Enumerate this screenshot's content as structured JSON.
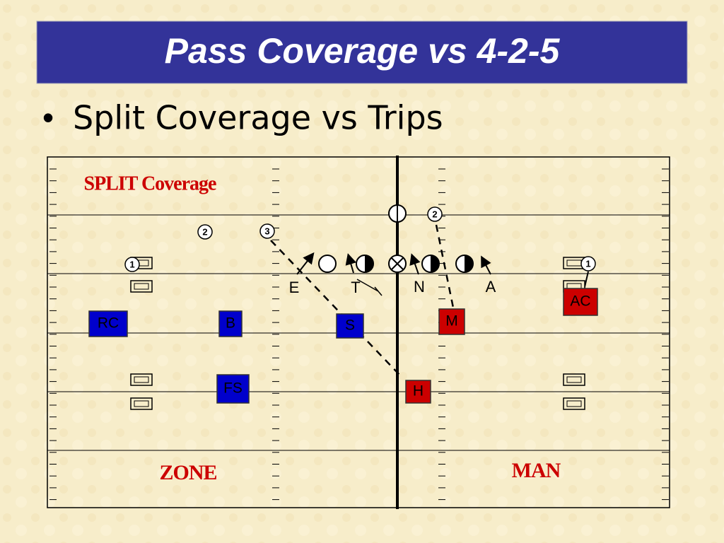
{
  "header": {
    "title": "Pass Coverage vs 4-2-5"
  },
  "bullet": "Split Coverage vs Trips",
  "diagram": {
    "caption": "SPLIT Coverage",
    "routes": [
      "1",
      "2",
      "3",
      "2",
      "1"
    ],
    "line_labels": [
      "E",
      "T",
      "N",
      "A"
    ],
    "defenders": [
      "RC",
      "B",
      "S",
      "FS",
      "M",
      "AC",
      "H"
    ],
    "zones": [
      "ZONE",
      "MAN"
    ]
  }
}
